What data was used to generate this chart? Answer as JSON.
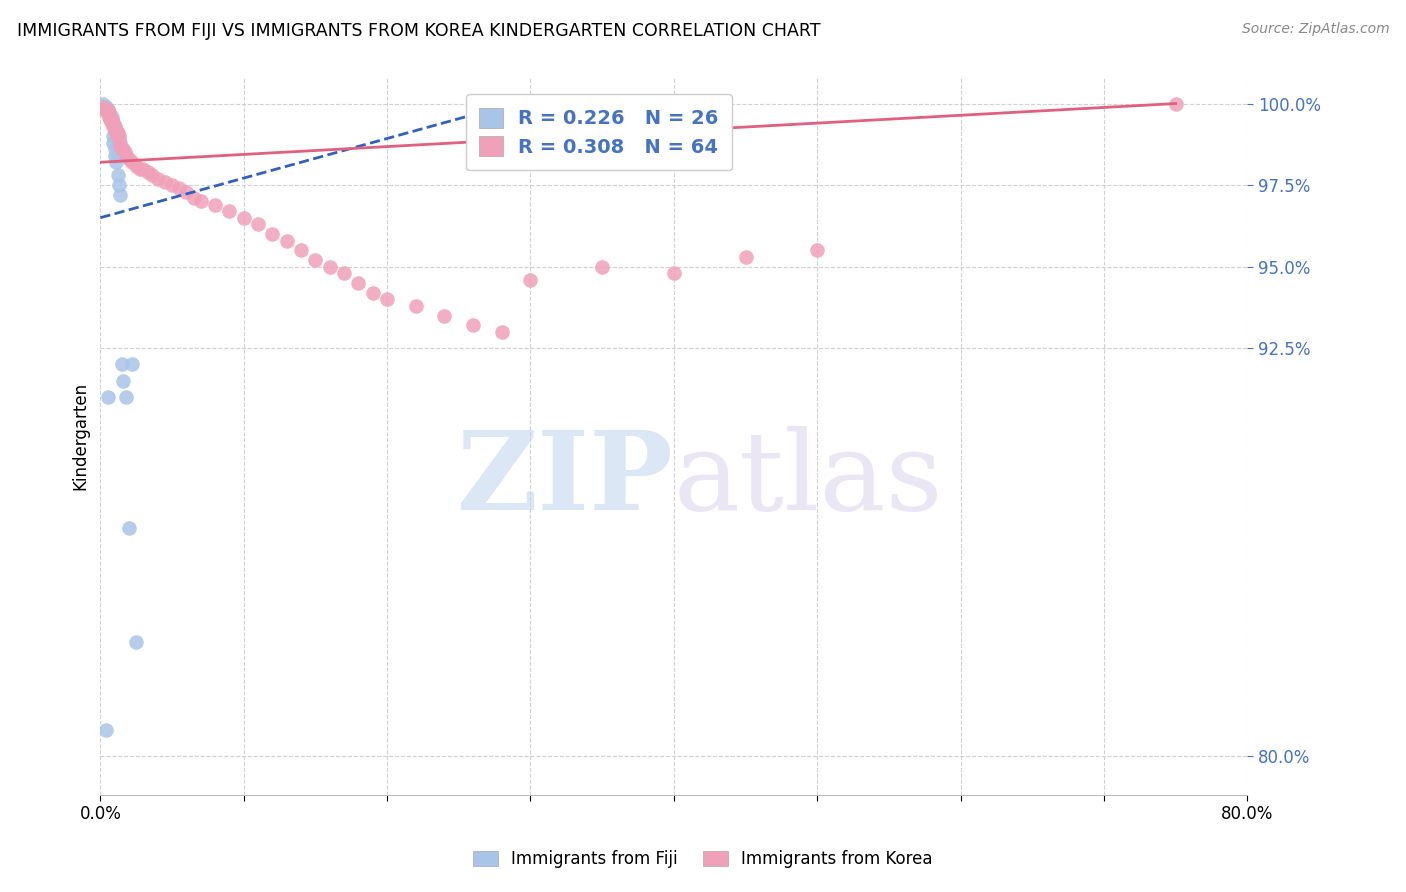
{
  "title": "IMMIGRANTS FROM FIJI VS IMMIGRANTS FROM KOREA KINDERGARTEN CORRELATION CHART",
  "source": "Source: ZipAtlas.com",
  "ylabel": "Kindergarten",
  "fiji_color": "#a8c4e8",
  "korea_color": "#f0a0b8",
  "fiji_line_color": "#3060c0",
  "korea_line_color": "#e06080",
  "fiji_line_style": "--",
  "xlim": [
    0.0,
    0.8
  ],
  "ylim": [
    0.788,
    1.008
  ],
  "ytick_values": [
    0.8,
    0.925,
    0.95,
    0.975,
    1.0
  ],
  "ytick_labels": [
    "80.0%",
    "92.5%",
    "95.0%",
    "97.5%",
    "100.0%"
  ],
  "xtick_values": [
    0.0,
    0.1,
    0.2,
    0.3,
    0.4,
    0.5,
    0.6,
    0.7,
    0.8
  ],
  "xtick_labels": [
    "0.0%",
    "",
    "",
    "",
    "",
    "",
    "",
    "",
    "80.0%"
  ],
  "grid_color": "#cccccc",
  "background_color": "#ffffff",
  "fiji_scatter_x": [
    0.002,
    0.003,
    0.004,
    0.005,
    0.005,
    0.006,
    0.006,
    0.007,
    0.008,
    0.008,
    0.009,
    0.009,
    0.01,
    0.01,
    0.011,
    0.012,
    0.013,
    0.014,
    0.015,
    0.016,
    0.018,
    0.02,
    0.022,
    0.025,
    0.005,
    0.004
  ],
  "fiji_scatter_y": [
    1.0,
    0.999,
    0.999,
    0.998,
    0.998,
    0.997,
    0.997,
    0.996,
    0.996,
    0.995,
    0.99,
    0.988,
    0.986,
    0.984,
    0.982,
    0.978,
    0.975,
    0.972,
    0.92,
    0.915,
    0.91,
    0.87,
    0.92,
    0.835,
    0.91,
    0.808
  ],
  "korea_scatter_x": [
    0.002,
    0.003,
    0.004,
    0.005,
    0.005,
    0.006,
    0.006,
    0.007,
    0.007,
    0.008,
    0.008,
    0.009,
    0.009,
    0.01,
    0.01,
    0.011,
    0.011,
    0.012,
    0.012,
    0.013,
    0.013,
    0.014,
    0.014,
    0.015,
    0.016,
    0.017,
    0.018,
    0.02,
    0.022,
    0.025,
    0.028,
    0.03,
    0.033,
    0.036,
    0.04,
    0.045,
    0.05,
    0.055,
    0.06,
    0.065,
    0.07,
    0.08,
    0.09,
    0.1,
    0.11,
    0.12,
    0.13,
    0.14,
    0.15,
    0.16,
    0.17,
    0.18,
    0.19,
    0.2,
    0.22,
    0.24,
    0.26,
    0.28,
    0.3,
    0.35,
    0.4,
    0.45,
    0.5,
    0.75
  ],
  "korea_scatter_y": [
    0.999,
    0.998,
    0.998,
    0.998,
    0.997,
    0.997,
    0.996,
    0.996,
    0.995,
    0.995,
    0.994,
    0.994,
    0.993,
    0.993,
    0.992,
    0.992,
    0.991,
    0.991,
    0.99,
    0.99,
    0.989,
    0.988,
    0.987,
    0.986,
    0.986,
    0.985,
    0.984,
    0.983,
    0.982,
    0.981,
    0.98,
    0.98,
    0.979,
    0.978,
    0.977,
    0.976,
    0.975,
    0.974,
    0.973,
    0.971,
    0.97,
    0.969,
    0.967,
    0.965,
    0.963,
    0.96,
    0.958,
    0.955,
    0.952,
    0.95,
    0.948,
    0.945,
    0.942,
    0.94,
    0.938,
    0.935,
    0.932,
    0.93,
    0.946,
    0.95,
    0.948,
    0.953,
    0.955,
    1.0
  ],
  "fiji_line_x0": 0.0,
  "fiji_line_x1": 0.28,
  "fiji_line_y0": 0.965,
  "fiji_line_y1": 0.999,
  "korea_line_x0": 0.0,
  "korea_line_x1": 0.75,
  "korea_line_y0": 0.982,
  "korea_line_y1": 1.0
}
